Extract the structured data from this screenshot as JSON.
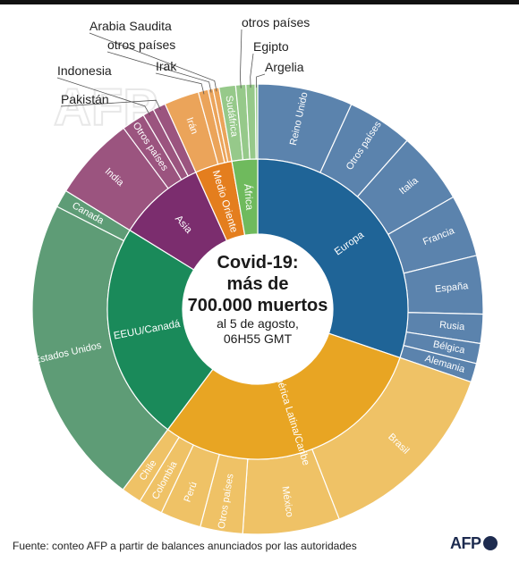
{
  "center_title": "Covid-19: más de 700.000 muertos",
  "center_title_lines": [
    "Covid-19:",
    "más de",
    "700.000 muertos"
  ],
  "center_subtitle_lines": [
    "al 5 de agosto,",
    "06H55 GMT"
  ],
  "source": "Fuente: conteo AFP a partir de balances anunciados por las autoridades",
  "logo_text": "AFP",
  "colors": {
    "Europa": [
      "#1f6497",
      "#5b83ad"
    ],
    "América Latina/Caribe": [
      "#e8a523",
      "#efc266"
    ],
    "EEUU/Canadá": [
      "#1a8a5a",
      "#5e9c76"
    ],
    "Asia": [
      "#7b2d6e",
      "#9b547f"
    ],
    "Medio Oriente": [
      "#e47e1e",
      "#eba45a"
    ],
    "África": [
      "#6fba5d",
      "#96c98a"
    ]
  },
  "chart_data": {
    "type": "sunburst",
    "title": "Covid-19: más de 700.000 muertos",
    "subtitle": "al 5 de agosto, 06H55 GMT",
    "unit": "muertos (aprox.)",
    "regions": [
      {
        "name": "Europa",
        "value": 212000,
        "children": [
          {
            "name": "Reino Unido",
            "value": 46400
          },
          {
            "name": "Otros países",
            "value": 32000
          },
          {
            "name": "Italia",
            "value": 35200
          },
          {
            "name": "Francia",
            "value": 30300
          },
          {
            "name": "España",
            "value": 28500
          },
          {
            "name": "Rusia",
            "value": 14200
          },
          {
            "name": "Bélgica",
            "value": 9850
          },
          {
            "name": "Alemania",
            "value": 9200
          }
        ]
      },
      {
        "name": "América Latina/Caribe",
        "value": 210000,
        "children": [
          {
            "name": "Brasil",
            "value": 95800
          },
          {
            "name": "México",
            "value": 48000
          },
          {
            "name": "Otros países",
            "value": 21000
          },
          {
            "name": "Perú",
            "value": 20200
          },
          {
            "name": "Colombia",
            "value": 11900
          },
          {
            "name": "Chile",
            "value": 10000
          }
        ]
      },
      {
        "name": "EEUU/Canadá",
        "value": 165500,
        "children": [
          {
            "name": "Estados Unidos",
            "value": 156700
          },
          {
            "name": "Canada",
            "value": 8950
          }
        ]
      },
      {
        "name": "Asia",
        "value": 66200,
        "children": [
          {
            "name": "India",
            "value": 39800
          },
          {
            "name": "Otros países",
            "value": 11000
          },
          {
            "name": "Indonesia",
            "value": 5300
          },
          {
            "name": "Pakistán",
            "value": 6000
          }
        ]
      },
      {
        "name": "Medio Oriente",
        "value": 28000,
        "children": [
          {
            "name": "Irán",
            "value": 17600
          },
          {
            "name": "Irak",
            "value": 5000
          },
          {
            "name": "otros países",
            "value": 2500
          },
          {
            "name": "Arabia Saudita",
            "value": 3000
          }
        ]
      },
      {
        "name": "África",
        "value": 19300,
        "children": [
          {
            "name": "Sudáfrica",
            "value": 8800
          },
          {
            "name": "otros países",
            "value": 5400
          },
          {
            "name": "Egipto",
            "value": 4900
          },
          {
            "name": "Argelia",
            "value": 1300
          }
        ]
      }
    ]
  }
}
